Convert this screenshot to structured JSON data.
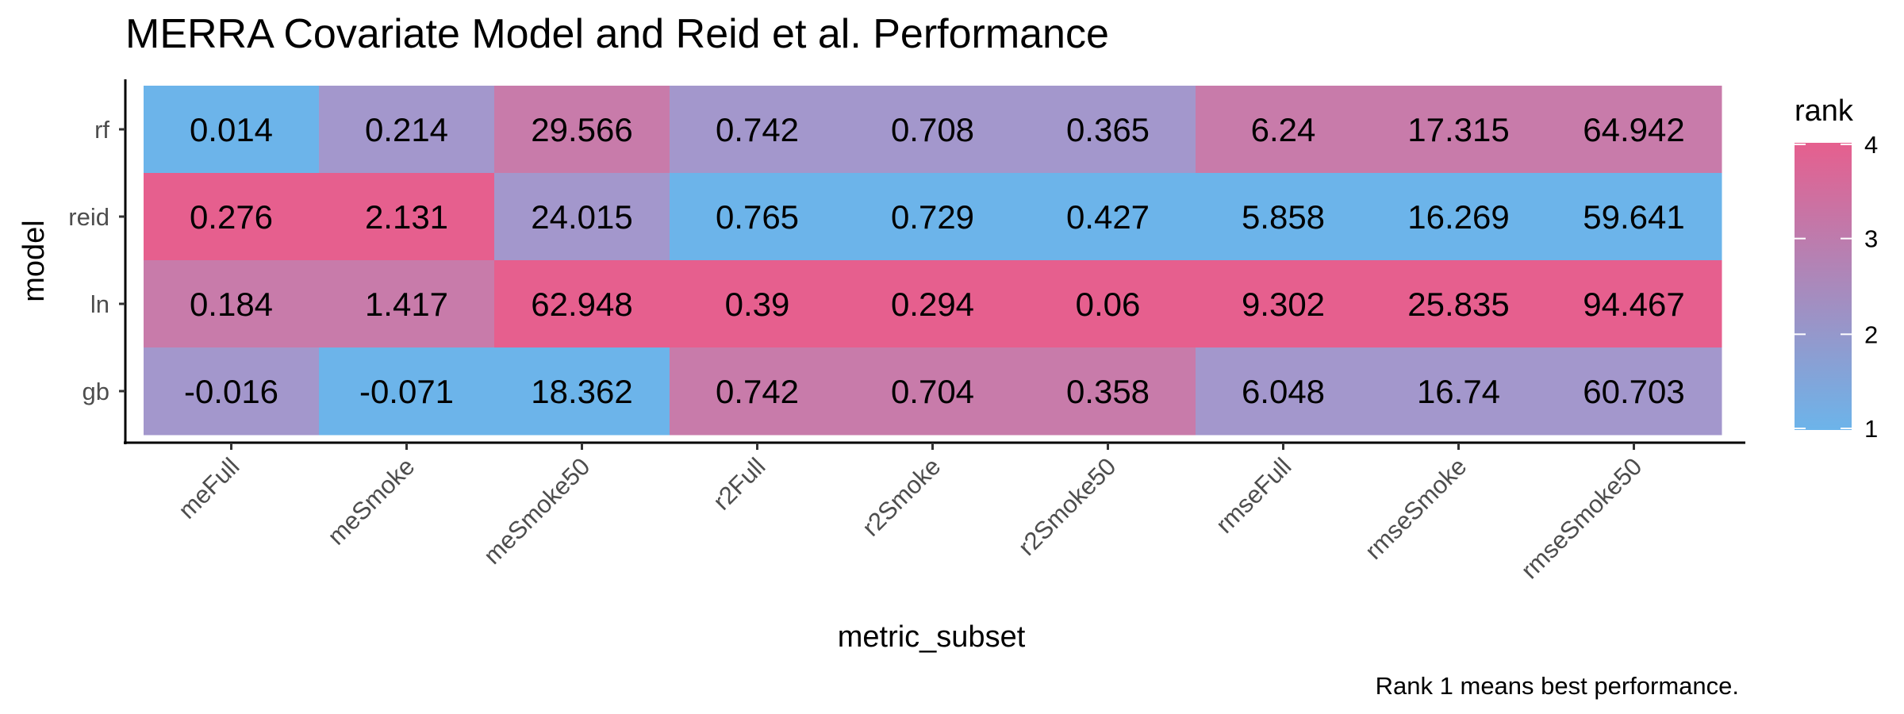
{
  "chart_data": {
    "type": "heatmap",
    "title": "MERRA Covariate Model and Reid et al. Performance",
    "xlabel": "metric_subset",
    "ylabel": "model",
    "caption": "Rank 1 means best performance.",
    "x_categories": [
      "meFull",
      "meSmoke",
      "meSmoke50",
      "r2Full",
      "r2Smoke",
      "r2Smoke50",
      "rmseFull",
      "rmseSmoke",
      "rmseSmoke50"
    ],
    "y_categories": [
      "rf",
      "reid",
      "ln",
      "gb"
    ],
    "values": [
      [
        "0.014",
        "0.214",
        "29.566",
        "0.742",
        "0.708",
        "0.365",
        "6.24",
        "17.315",
        "64.942"
      ],
      [
        "0.276",
        "2.131",
        "24.015",
        "0.765",
        "0.729",
        "0.427",
        "5.858",
        "16.269",
        "59.641"
      ],
      [
        "0.184",
        "1.417",
        "62.948",
        "0.39",
        "0.294",
        "0.06",
        "9.302",
        "25.835",
        "94.467"
      ],
      [
        "-0.016",
        "-0.071",
        "18.362",
        "0.742",
        "0.704",
        "0.358",
        "6.048",
        "16.74",
        "60.703"
      ]
    ],
    "ranks": [
      [
        1,
        2,
        3,
        2,
        2,
        2,
        3,
        3,
        3
      ],
      [
        4,
        4,
        2,
        1,
        1,
        1,
        1,
        1,
        1
      ],
      [
        3,
        3,
        4,
        4,
        4,
        4,
        4,
        4,
        4
      ],
      [
        2,
        1,
        1,
        3,
        3,
        3,
        2,
        2,
        2
      ]
    ],
    "legend": {
      "title": "rank",
      "ticks": [
        "1",
        "2",
        "3",
        "4"
      ],
      "range": [
        1,
        4
      ],
      "low_color": "#6CB4EA",
      "high_color": "#E65F8E",
      "position": "right"
    },
    "color_scale": {
      "1": "#6CB4EA",
      "2": "#A397CC",
      "3": "#C87BAA",
      "4": "#E65F8E"
    }
  }
}
